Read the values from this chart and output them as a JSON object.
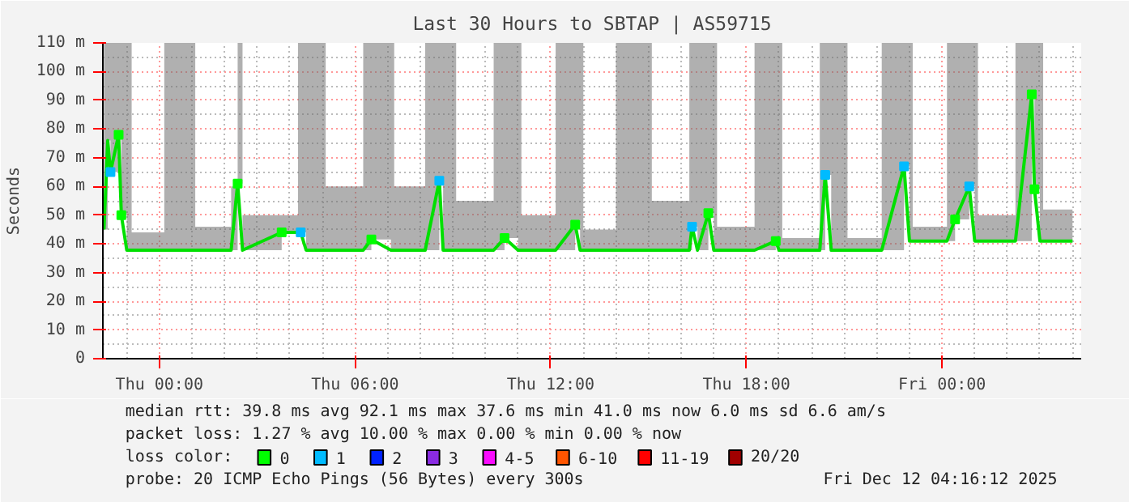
{
  "chart_data": {
    "type": "line",
    "title": "Last 30 Hours to SBTAP | AS59715",
    "ylabel": "Seconds",
    "legend_title": "loss color:",
    "legend": "bottom",
    "grid": true,
    "marker": "square",
    "xlim": [
      "2025-12-10T22:16",
      "2025-12-12T04:16"
    ],
    "ylim": [
      0,
      110
    ],
    "xticks": [
      {
        "value": "2025-12-11T00:00",
        "label": "Thu 00:00"
      },
      {
        "value": "2025-12-11T06:00",
        "label": "Thu 06:00"
      },
      {
        "value": "2025-12-11T12:00",
        "label": "Thu 12:00"
      },
      {
        "value": "2025-12-11T18:00",
        "label": "Thu 18:00"
      },
      {
        "value": "2025-12-12T00:00",
        "label": "Fri 00:00"
      }
    ],
    "yticks": [
      0,
      {
        "value": 10,
        "label": "10 m"
      },
      {
        "value": 20,
        "label": "20 m"
      },
      {
        "value": 30,
        "label": "30 m"
      },
      {
        "value": 40,
        "label": "40 m"
      },
      {
        "value": 50,
        "label": "50 m"
      },
      {
        "value": 60,
        "label": "60 m"
      },
      {
        "value": 70,
        "label": "70 m"
      },
      {
        "value": 80,
        "label": "80 m"
      },
      {
        "value": 90,
        "label": "90 m"
      },
      {
        "value": 100,
        "label": "100 m"
      },
      {
        "value": 110,
        "label": "110 m"
      }
    ],
    "x": [
      "2025-12-10T22:18",
      "2025-12-10T22:25",
      "2025-12-10T22:30",
      "2025-12-10T22:45",
      "2025-12-10T22:50",
      "2025-12-10T23:00",
      "2025-12-10T23:09",
      "2025-12-11T00:00",
      "2025-12-11T00:09",
      "2025-12-11T01:00",
      "2025-12-11T01:06",
      "2025-12-11T02:12",
      "2025-12-11T02:24",
      "2025-12-11T02:33",
      "2025-12-11T03:45",
      "2025-12-11T04:15",
      "2025-12-11T04:20",
      "2025-12-11T04:30",
      "2025-12-11T05:00",
      "2025-12-11T05:06",
      "2025-12-11T06:15",
      "2025-12-11T06:30",
      "2025-12-11T07:06",
      "2025-12-11T07:12",
      "2025-12-11T08:09",
      "2025-12-11T08:35",
      "2025-12-11T08:42",
      "2025-12-11T09:00",
      "2025-12-11T09:06",
      "2025-12-11T10:15",
      "2025-12-11T10:35",
      "2025-12-11T11:00",
      "2025-12-11T11:06",
      "2025-12-11T12:09",
      "2025-12-11T12:45",
      "2025-12-11T12:54",
      "2025-12-11T13:00",
      "2025-12-11T14:00",
      "2025-12-11T15:00",
      "2025-12-11T15:06",
      "2025-12-11T16:15",
      "2025-12-11T16:20",
      "2025-12-11T16:30",
      "2025-12-11T16:50",
      "2025-12-11T17:00",
      "2025-12-11T17:06",
      "2025-12-11T18:15",
      "2025-12-11T18:54",
      "2025-12-11T19:00",
      "2025-12-11T19:06",
      "2025-12-11T20:15",
      "2025-12-11T20:25",
      "2025-12-11T20:36",
      "2025-12-11T21:00",
      "2025-12-11T21:06",
      "2025-12-11T22:09",
      "2025-12-11T22:50",
      "2025-12-11T23:00",
      "2025-12-11T23:06",
      "2025-12-12T00:09",
      "2025-12-12T00:24",
      "2025-12-12T00:50",
      "2025-12-12T01:00",
      "2025-12-12T01:06",
      "2025-12-12T02:15",
      "2025-12-12T02:45",
      "2025-12-12T02:50",
      "2025-12-12T03:00",
      "2025-12-12T03:06",
      "2025-12-12T04:00"
    ],
    "series": [
      {
        "color": "#00e000",
        "marker": "none",
        "values": [
          45,
          76,
          65,
          78,
          50,
          37.8,
          37.8,
          37.8,
          37.8,
          37.8,
          37.8,
          37.8,
          61,
          37.8,
          44,
          44,
          44,
          37.8,
          37.8,
          37.8,
          37.8,
          41.5,
          37.8,
          37.8,
          37.8,
          62,
          37.8,
          37.8,
          37.8,
          37.8,
          42,
          37.8,
          37.8,
          37.8,
          46.7,
          37.8,
          37.8,
          37.8,
          37.8,
          37.8,
          37.8,
          46,
          37.8,
          50.7,
          37.8,
          37.8,
          37.8,
          41,
          37.8,
          37.8,
          37.8,
          64,
          37.8,
          37.8,
          37.8,
          37.8,
          67,
          41,
          41,
          41,
          48.5,
          60,
          41,
          41,
          41,
          92.1,
          59,
          41,
          41,
          41
        ],
        "lower": [
          45,
          76,
          65,
          78,
          50,
          37.8,
          37.8,
          37.8,
          37.8,
          37.8,
          37.8,
          37.8,
          61,
          37.8,
          44,
          44,
          44,
          37.8,
          37.8,
          37.8,
          37.8,
          41.5,
          37.8,
          37.8,
          37.8,
          62,
          37.8,
          37.8,
          37.8,
          37.8,
          42,
          37.8,
          37.8,
          37.8,
          46.7,
          37.8,
          37.8,
          37.8,
          37.8,
          37.8,
          37.8,
          46,
          37.8,
          50.7,
          37.8,
          37.8,
          37.8,
          41,
          37.8,
          37.8,
          37.8,
          64,
          37.8,
          37.8,
          37.8,
          37.8,
          67,
          41,
          41,
          41,
          48.5,
          60,
          41,
          41,
          41,
          92.1,
          59,
          41,
          41,
          41
        ],
        "upper": [
          110,
          110,
          110,
          110,
          110,
          110,
          44,
          44,
          110,
          110,
          46,
          60,
          110,
          50,
          50,
          110,
          110,
          110,
          110,
          60,
          110,
          110,
          110,
          60,
          110,
          110,
          110,
          110,
          55,
          110,
          110,
          110,
          50,
          110,
          110,
          110,
          45,
          110,
          110,
          55,
          110,
          110,
          110,
          110,
          110,
          46,
          110,
          110,
          110,
          42,
          110,
          110,
          110,
          110,
          42,
          110,
          110,
          110,
          46,
          110,
          110,
          110,
          110,
          50,
          110,
          110,
          110,
          110,
          52,
          48
        ]
      },
      {
        "type": "scatter",
        "name": "0",
        "color": "#00ff00",
        "x": [
          "2025-12-10T22:45",
          "2025-12-10T22:50",
          "2025-12-11T02:24",
          "2025-12-11T03:45",
          "2025-12-11T06:30",
          "2025-12-11T10:35",
          "2025-12-11T12:45",
          "2025-12-11T16:50",
          "2025-12-11T18:54",
          "2025-12-12T00:24",
          "2025-12-12T02:45",
          "2025-12-12T02:50"
        ],
        "values": [
          78,
          50,
          61,
          44,
          41.5,
          42,
          46.7,
          50.7,
          41,
          48.5,
          92.1,
          59
        ]
      },
      {
        "type": "scatter",
        "name": "1",
        "color": "#00bbff",
        "x": [
          "2025-12-10T22:30",
          "2025-12-11T04:20",
          "2025-12-11T08:35",
          "2025-12-11T16:20",
          "2025-12-11T20:25",
          "2025-12-11T22:50",
          "2025-12-12T00:50"
        ],
        "values": [
          65,
          44,
          62,
          46,
          64,
          67,
          60
        ]
      },
      {
        "type": "scatter",
        "name": "2",
        "color": "#0022ff",
        "values": [
          null,
          null,
          null,
          null,
          null,
          null,
          null,
          null,
          null,
          null,
          null,
          null,
          null,
          null,
          null,
          null,
          null,
          null,
          null,
          null,
          null,
          null,
          null,
          null,
          null,
          null,
          null,
          null,
          null,
          null,
          null,
          null,
          null,
          null,
          null,
          null,
          null,
          null,
          null,
          null,
          null,
          null,
          null,
          null,
          null,
          null,
          null,
          null,
          null,
          null,
          null,
          null,
          null,
          null,
          null,
          null,
          null,
          null,
          null,
          null,
          null,
          null,
          null,
          null,
          null,
          null,
          null,
          null,
          null,
          null
        ]
      },
      {
        "type": "scatter",
        "name": "3",
        "color": "#8a2be2",
        "values": [
          null,
          null,
          null,
          null,
          null,
          null,
          null,
          null,
          null,
          null,
          null,
          null,
          null,
          null,
          null,
          null,
          null,
          null,
          null,
          null,
          null,
          null,
          null,
          null,
          null,
          null,
          null,
          null,
          null,
          null,
          null,
          null,
          null,
          null,
          null,
          null,
          null,
          null,
          null,
          null,
          null,
          null,
          null,
          null,
          null,
          null,
          null,
          null,
          null,
          null,
          null,
          null,
          null,
          null,
          null,
          null,
          null,
          null,
          null,
          null,
          null,
          null,
          null,
          null,
          null,
          null,
          null,
          null,
          null,
          null
        ]
      },
      {
        "type": "scatter",
        "name": "4-5",
        "color": "#fa0bff",
        "values": [
          null,
          null,
          null,
          null,
          null,
          null,
          null,
          null,
          null,
          null,
          null,
          null,
          null,
          null,
          null,
          null,
          null,
          null,
          null,
          null,
          null,
          null,
          null,
          null,
          null,
          null,
          null,
          null,
          null,
          null,
          null,
          null,
          null,
          null,
          null,
          null,
          null,
          null,
          null,
          null,
          null,
          null,
          null,
          null,
          null,
          null,
          null,
          null,
          null,
          null,
          null,
          null,
          null,
          null,
          null,
          null,
          null,
          null,
          null,
          null,
          null,
          null,
          null,
          null,
          null,
          null,
          null,
          null,
          null,
          null
        ]
      },
      {
        "type": "scatter",
        "name": "6-10",
        "color": "#ff5500",
        "values": [
          null,
          null,
          null,
          null,
          null,
          null,
          null,
          null,
          null,
          null,
          null,
          null,
          null,
          null,
          null,
          null,
          null,
          null,
          null,
          null,
          null,
          null,
          null,
          null,
          null,
          null,
          null,
          null,
          null,
          null,
          null,
          null,
          null,
          null,
          null,
          null,
          null,
          null,
          null,
          null,
          null,
          null,
          null,
          null,
          null,
          null,
          null,
          null,
          null,
          null,
          null,
          null,
          null,
          null,
          null,
          null,
          null,
          null,
          null,
          null,
          null,
          null,
          null,
          null,
          null,
          null,
          null,
          null,
          null,
          null
        ]
      },
      {
        "type": "scatter",
        "name": "11-19",
        "color": "#ff0000",
        "values": [
          null,
          null,
          null,
          null,
          null,
          null,
          null,
          null,
          null,
          null,
          null,
          null,
          null,
          null,
          null,
          null,
          null,
          null,
          null,
          null,
          null,
          null,
          null,
          null,
          null,
          null,
          null,
          null,
          null,
          null,
          null,
          null,
          null,
          null,
          null,
          null,
          null,
          null,
          null,
          null,
          null,
          null,
          null,
          null,
          null,
          null,
          null,
          null,
          null,
          null,
          null,
          null,
          null,
          null,
          null,
          null,
          null,
          null,
          null,
          null,
          null,
          null,
          null,
          null,
          null,
          null,
          null,
          null,
          null,
          null
        ]
      },
      {
        "type": "scatter",
        "name": "20/20",
        "color": "#a10000",
        "values": [
          null,
          null,
          null,
          null,
          null,
          null,
          null,
          null,
          null,
          null,
          null,
          null,
          null,
          null,
          null,
          null,
          null,
          null,
          null,
          null,
          null,
          null,
          null,
          null,
          null,
          null,
          null,
          null,
          null,
          null,
          null,
          null,
          null,
          null,
          null,
          null,
          null,
          null,
          null,
          null,
          null,
          null,
          null,
          null,
          null,
          null,
          null,
          null,
          null,
          null,
          null,
          null,
          null,
          null,
          null,
          null,
          null,
          null,
          null,
          null,
          null,
          null,
          null,
          null,
          null,
          null,
          null,
          null,
          null,
          null
        ]
      }
    ],
    "annotations": [
      "median rtt:  39.8 ms avg   92.1 ms max   37.6 ms min   41.0 ms now   6.0 ms sd   6.6   am/s",
      "packet loss: 1.27 % avg  10.00 % max   0.00 % min   0.00 % now",
      "probe:       20 ICMP Echo Pings (56 Bytes) every 300s",
      "Fri Dec 12 04:16:12 2025"
    ]
  }
}
